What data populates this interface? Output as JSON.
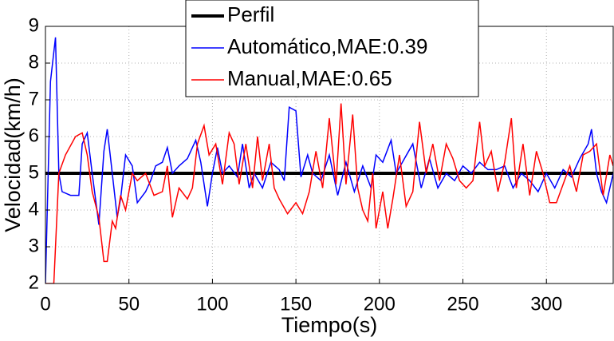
{
  "chart_data": {
    "type": "line",
    "xlabel": "Tiempo(s)",
    "ylabel": "Velocidad(km/h)",
    "xlim": [
      0,
      340
    ],
    "ylim": [
      2,
      9
    ],
    "xticks": [
      0,
      50,
      100,
      150,
      200,
      250,
      300
    ],
    "yticks": [
      2,
      3,
      4,
      5,
      6,
      7,
      8,
      9
    ],
    "grid": true,
    "legend": "upper center",
    "series": [
      {
        "name": "Perfil",
        "color": "#000000",
        "x": [
          0,
          340
        ],
        "values": [
          5,
          5
        ]
      },
      {
        "name": "Automático,MAE:0.39",
        "color": "#0000ff",
        "x": [
          0,
          3,
          6,
          8,
          10,
          15,
          20,
          22,
          25,
          28,
          32,
          35,
          37,
          40,
          43,
          45,
          48,
          52,
          55,
          60,
          63,
          66,
          70,
          73,
          76,
          80,
          85,
          90,
          93,
          97,
          100,
          103,
          106,
          110,
          115,
          118,
          122,
          125,
          130,
          135,
          140,
          143,
          146,
          150,
          153,
          157,
          160,
          165,
          170,
          175,
          180,
          185,
          190,
          195,
          198,
          202,
          207,
          210,
          215,
          220,
          225,
          230,
          235,
          240,
          245,
          250,
          255,
          260,
          265,
          270,
          275,
          280,
          285,
          290,
          295,
          300,
          305,
          310,
          315,
          320,
          325,
          327,
          330,
          333,
          336,
          340
        ],
        "values": [
          2,
          7.5,
          8.7,
          5,
          4.5,
          4.4,
          4.4,
          5.8,
          6.1,
          5,
          3.6,
          5.6,
          6.2,
          5,
          3.8,
          4.3,
          5.5,
          5.2,
          4.2,
          4.5,
          4.8,
          5.2,
          5.3,
          5.7,
          5,
          5.2,
          5.4,
          5.9,
          5.3,
          4.1,
          5,
          5.7,
          5,
          5.2,
          4.9,
          5.8,
          4.6,
          5,
          4.6,
          5.3,
          5.1,
          4.8,
          6.8,
          6.7,
          4.9,
          5.5,
          5,
          4.8,
          5.5,
          4.4,
          5.3,
          4.5,
          5.2,
          4.6,
          5.5,
          5.3,
          5.9,
          5,
          5.4,
          5.8,
          4.6,
          5.4,
          4.6,
          5,
          4.8,
          5.2,
          5,
          5.3,
          5.1,
          5.1,
          5.2,
          4.6,
          5,
          4.8,
          4.5,
          5,
          4.6,
          5.1,
          4.9,
          5.4,
          5.8,
          6.2,
          5,
          4.5,
          4.2,
          5
        ]
      },
      {
        "name": "Manual,MAE:0.65",
        "color": "#ff0000",
        "x": [
          0,
          5,
          8,
          12,
          18,
          22,
          25,
          28,
          32,
          35,
          37,
          40,
          42,
          45,
          48,
          52,
          55,
          60,
          65,
          70,
          73,
          76,
          80,
          85,
          88,
          91,
          95,
          98,
          102,
          106,
          110,
          113,
          116,
          120,
          124,
          127,
          130,
          134,
          137,
          140,
          145,
          150,
          154,
          158,
          162,
          166,
          170,
          174,
          177,
          180,
          184,
          187,
          190,
          193,
          196,
          198,
          202,
          205,
          208,
          212,
          216,
          220,
          224,
          228,
          232,
          236,
          240,
          244,
          248,
          252,
          256,
          260,
          263,
          267,
          271,
          275,
          279,
          282,
          286,
          290,
          294,
          298,
          302,
          306,
          310,
          314,
          318,
          322,
          326,
          330,
          334,
          338,
          340
        ],
        "values": [
          2,
          2,
          5,
          5.5,
          6,
          6.1,
          5.5,
          4.5,
          3.8,
          2.6,
          2.6,
          3.7,
          3.5,
          4.4,
          4,
          5,
          4.8,
          5,
          4.4,
          4.5,
          5.2,
          3.8,
          4.6,
          4.3,
          4.6,
          5.8,
          6.3,
          5.5,
          5.8,
          4.7,
          6.1,
          5.8,
          4.7,
          5.8,
          4.6,
          6,
          4.8,
          5.8,
          4.6,
          4.3,
          3.9,
          4.2,
          3.9,
          4.5,
          5.6,
          4.6,
          6.5,
          4.7,
          6.9,
          4.7,
          6.6,
          4.6,
          4,
          3.7,
          5,
          3.5,
          4.5,
          3.5,
          4.3,
          5.5,
          4.1,
          4.5,
          6.4,
          5,
          5.8,
          4.8,
          5.8,
          5.4,
          4.8,
          4.6,
          4.8,
          6.4,
          5.2,
          5.6,
          4.5,
          5.3,
          6.5,
          4.6,
          5.8,
          4.4,
          5.6,
          5,
          4.2,
          4.2,
          4.7,
          5.2,
          4.5,
          5.5,
          5.6,
          5.8,
          4.4,
          5.5,
          5.2
        ]
      }
    ]
  }
}
